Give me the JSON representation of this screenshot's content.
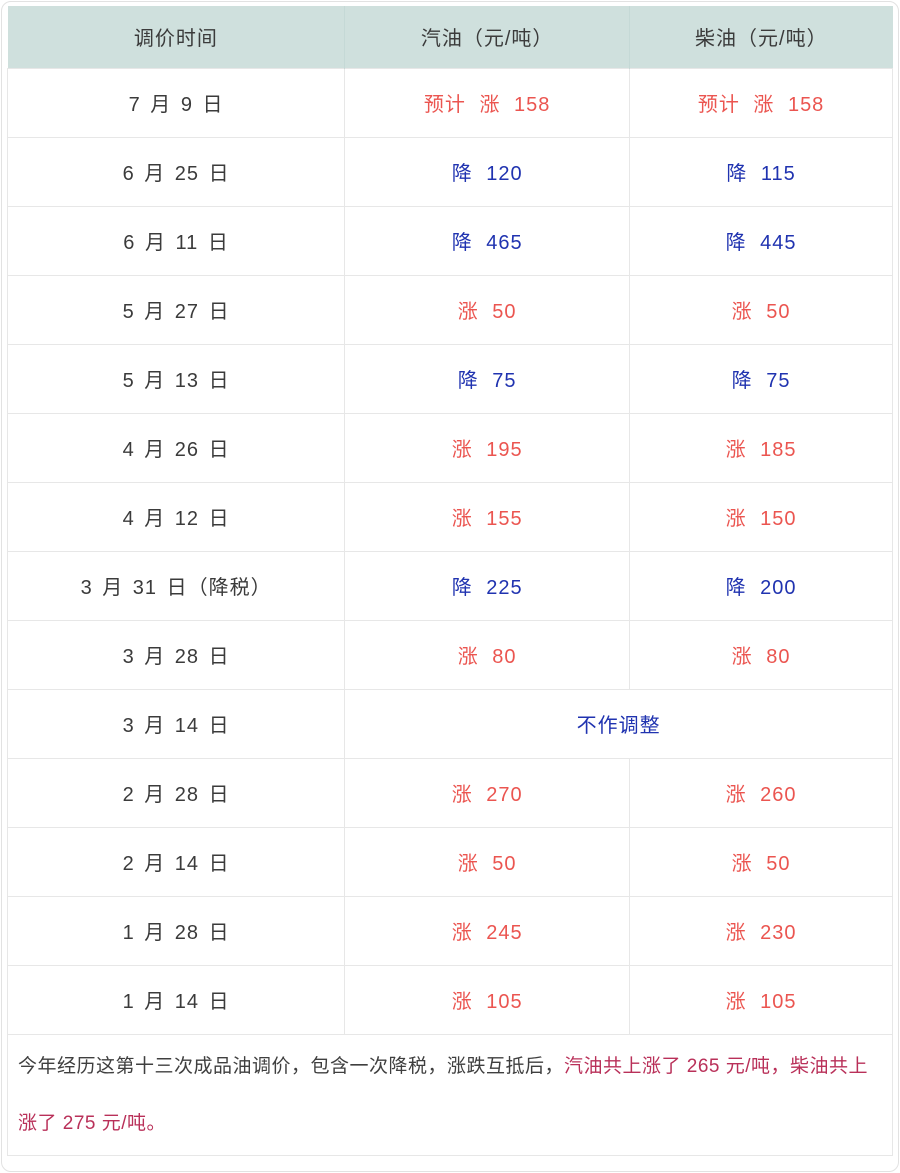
{
  "chart_data": {
    "type": "table",
    "columns": [
      "调价时间",
      "汽油（元/吨）",
      "柴油（元/吨）"
    ],
    "rows": [
      {
        "date": "7 月 9 日",
        "gasoline": "预计 涨 158",
        "diesel": "预计 涨 158",
        "direction": "rise"
      },
      {
        "date": "6 月 25 日",
        "gasoline": "降 120",
        "diesel": "降 115",
        "direction": "fall"
      },
      {
        "date": "6 月 11 日",
        "gasoline": "降 465",
        "diesel": "降 445",
        "direction": "fall"
      },
      {
        "date": "5 月 27 日",
        "gasoline": "涨 50",
        "diesel": "涨 50",
        "direction": "rise"
      },
      {
        "date": "5 月 13 日",
        "gasoline": "降 75",
        "diesel": "降 75",
        "direction": "fall"
      },
      {
        "date": "4 月 26 日",
        "gasoline": "涨 195",
        "diesel": "涨 185",
        "direction": "rise"
      },
      {
        "date": "4 月 12 日",
        "gasoline": "涨 155",
        "diesel": "涨 150",
        "direction": "rise"
      },
      {
        "date": "3 月 31 日（降税）",
        "gasoline": "降 225",
        "diesel": "降 200",
        "direction": "fall"
      },
      {
        "date": "3 月 28 日",
        "gasoline": "涨 80",
        "diesel": "涨 80",
        "direction": "rise"
      },
      {
        "date": "3 月 14 日",
        "merged": "不作调整",
        "direction": "none"
      },
      {
        "date": "2 月 28 日",
        "gasoline": "涨 270",
        "diesel": "涨 260",
        "direction": "rise"
      },
      {
        "date": "2 月 14 日",
        "gasoline": "涨 50",
        "diesel": "涨 50",
        "direction": "rise"
      },
      {
        "date": "1 月 28 日",
        "gasoline": "涨 245",
        "diesel": "涨 230",
        "direction": "rise"
      },
      {
        "date": "1 月 14 日",
        "gasoline": "涨 105",
        "diesel": "涨 105",
        "direction": "rise"
      }
    ],
    "summary": {
      "normal": "今年经历这第十三次成品油调价，包含一次降税，涨跌互抵后，",
      "highlight": "汽油共上涨了 265 元/吨，柴油共上涨了 275 元/吨。"
    }
  },
  "colors": {
    "header_bg": "#cfe0dd",
    "rise": "#eb5550",
    "fall": "#2033b0",
    "highlight": "#b93059",
    "text": "#3b3b3b",
    "border": "#e7e7e7"
  }
}
